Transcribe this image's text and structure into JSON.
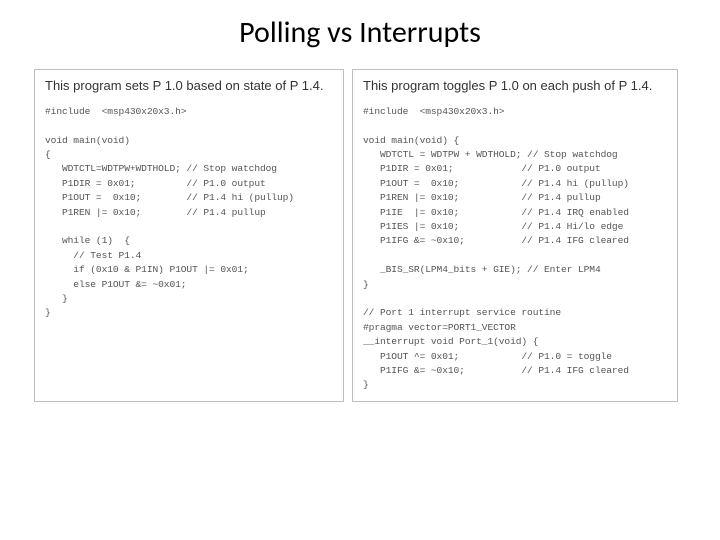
{
  "title": "Polling vs Interrupts",
  "left": {
    "desc": "This program sets P 1.0 based on state of P 1.4.",
    "code": "#include  <msp430x20x3.h>\n\nvoid main(void)\n{\n   WDTCTL=WDTPW+WDTHOLD; // Stop watchdog\n   P1DIR = 0x01;         // P1.0 output\n   P1OUT =  0x10;        // P1.4 hi (pullup)\n   P1REN |= 0x10;        // P1.4 pullup\n\n   while (1)  {\n     // Test P1.4\n     if (0x10 & P1IN) P1OUT |= 0x01;\n     else P1OUT &= ~0x01;\n   }\n}"
  },
  "right": {
    "desc": "This program toggles P 1.0 on each push of P 1.4.",
    "code": "#include  <msp430x20x3.h>\n\nvoid main(void) {\n   WDTCTL = WDTPW + WDTHOLD; // Stop watchdog\n   P1DIR = 0x01;            // P1.0 output\n   P1OUT =  0x10;           // P1.4 hi (pullup)\n   P1REN |= 0x10;           // P1.4 pullup\n   P1IE  |= 0x10;           // P1.4 IRQ enabled\n   P1IES |= 0x10;           // P1.4 Hi/lo edge\n   P1IFG &= ~0x10;          // P1.4 IFG cleared\n\n   _BIS_SR(LPM4_bits + GIE); // Enter LPM4\n}\n\n// Port 1 interrupt service routine\n#pragma vector=PORT1_VECTOR\n__interrupt void Port_1(void) {\n   P1OUT ^= 0x01;           // P1.0 = toggle\n   P1IFG &= ~0x10;          // P1.4 IFG cleared\n}"
  },
  "colors": {
    "background": "#ffffff",
    "title_color": "#000000",
    "panel_border": "#bfbfbf",
    "desc_color": "#333333",
    "code_color": "#555555"
  },
  "typography": {
    "title_fontsize": 30,
    "desc_fontsize": 13,
    "code_fontsize": 9.6
  }
}
